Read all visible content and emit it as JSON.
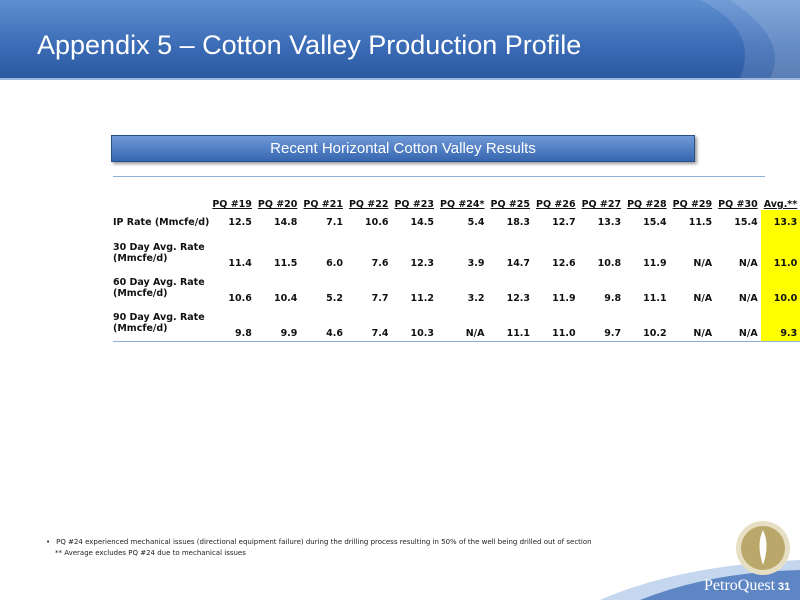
{
  "header": {
    "title": "Appendix 5 – Cotton Valley Production Profile"
  },
  "table": {
    "caption": "Recent Horizontal Cotton Valley Results",
    "columns": [
      "PQ #19",
      "PQ #20",
      "PQ #21",
      "PQ #22",
      "PQ #23",
      "PQ #24*",
      "PQ #25",
      "PQ #26",
      "PQ #27",
      "PQ #28",
      "PQ #29",
      "PQ #30",
      "Avg.**"
    ],
    "rows": [
      {
        "label": [
          "IP Rate (Mmcfe/d)"
        ],
        "cells": [
          "12.5",
          "14.8",
          "7.1",
          "10.6",
          "14.5",
          "5.4",
          "18.3",
          "12.7",
          "13.3",
          "15.4",
          "11.5",
          "15.4",
          "13.3"
        ]
      },
      {
        "label": [
          "30 Day Avg. Rate",
          "(Mmcfe/d)"
        ],
        "cells": [
          "11.4",
          "11.5",
          "6.0",
          "7.6",
          "12.3",
          "3.9",
          "14.7",
          "12.6",
          "10.8",
          "11.9",
          "N/A",
          "N/A",
          "11.0"
        ]
      },
      {
        "label": [
          "60 Day Avg. Rate",
          "(Mmcfe/d)"
        ],
        "cells": [
          "10.6",
          "10.4",
          "5.2",
          "7.7",
          "11.2",
          "3.2",
          "12.3",
          "11.9",
          "9.8",
          "11.1",
          "N/A",
          "N/A",
          "10.0"
        ]
      },
      {
        "label": [
          "90 Day Avg. Rate",
          "(Mmcfe/d)"
        ],
        "cells": [
          "9.8",
          "9.9",
          "4.6",
          "7.4",
          "10.3",
          "N/A",
          "11.1",
          "11.0",
          "9.7",
          "10.2",
          "N/A",
          "N/A",
          "9.3"
        ]
      }
    ]
  },
  "footnotes": [
    "PQ #24 experienced mechanical issues (directional equipment failure) during the drilling process resulting in 50% of the well being drilled out of section",
    "** Average excludes PQ #24 due to mechanical issues"
  ],
  "footer": {
    "logo": "PetroQuest",
    "page": "31"
  }
}
